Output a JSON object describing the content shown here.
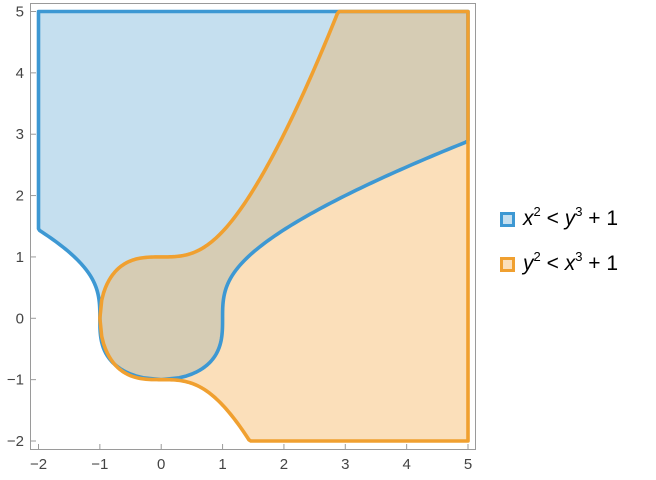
{
  "chart_data": {
    "type": "area",
    "title": "",
    "xlabel": "",
    "ylabel": "",
    "xlim": [
      -2,
      5
    ],
    "ylim": [
      -2,
      5
    ],
    "x_ticks": [
      "-2",
      "-1",
      "0",
      "1",
      "2",
      "3",
      "4",
      "5"
    ],
    "y_ticks": [
      "-2",
      "-1",
      "0",
      "1",
      "2",
      "3",
      "4",
      "5"
    ],
    "grid": false,
    "legend_position": "right",
    "series": [
      {
        "name": "x² < y³ + 1",
        "legend": {
          "a": "x",
          "a_exp": "2",
          "rel": "<",
          "b": "y",
          "b_exp": "3",
          "rest": "+ 1"
        },
        "inequality": "x^2 < y^3 + 1",
        "stroke": "#3d98d3",
        "fill": "#c5dfef",
        "boundary": "y = cbrt(x^2 - 1), plus the lines x = -2 and y = 5"
      },
      {
        "name": "y² < x³ + 1",
        "legend": {
          "a": "y",
          "a_exp": "2",
          "rel": "<",
          "b": "x",
          "b_exp": "3",
          "rest": "+ 1"
        },
        "inequality": "y^2 < x^3 + 1",
        "stroke": "#f0a030",
        "fill": "#fbdfba",
        "boundary": "x = cbrt(y^2 - 1), plus the lines x = 5 and y = -2"
      }
    ],
    "overlap_fill": "#d6ccb4"
  }
}
